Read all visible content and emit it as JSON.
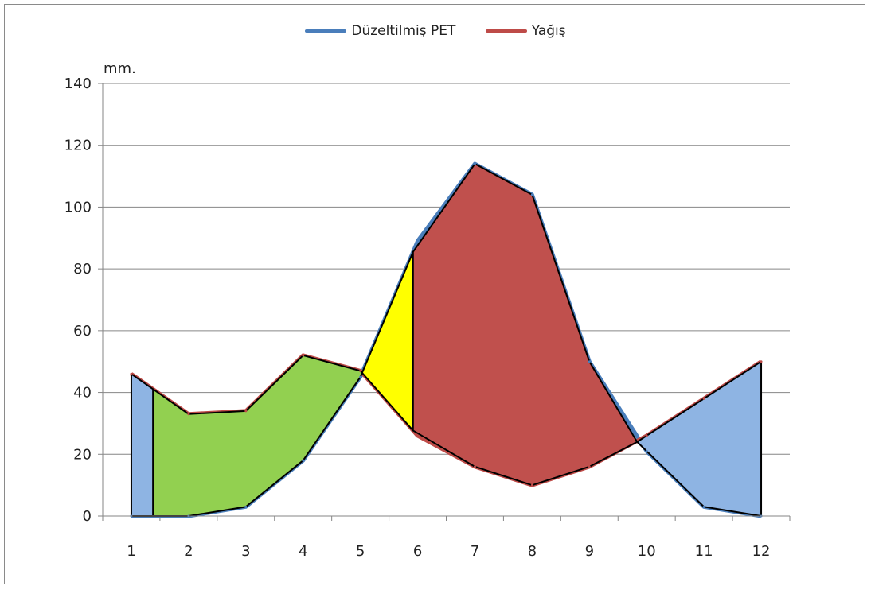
{
  "chart_data": {
    "type": "line",
    "unit_label": "mm.",
    "categories": [
      "1",
      "2",
      "3",
      "4",
      "5",
      "6",
      "7",
      "8",
      "9",
      "10",
      "11",
      "12"
    ],
    "ylim": [
      0,
      140
    ],
    "yticks": [
      "0",
      "20",
      "40",
      "60",
      "80",
      "100",
      "120",
      "140"
    ],
    "grid": true,
    "legend_position": "top",
    "series": [
      {
        "name": "Düzeltilmiş PET",
        "color": "#4a7ebb",
        "values": [
          0,
          0,
          3,
          18,
          45,
          89,
          114,
          104,
          50,
          21,
          3,
          0
        ]
      },
      {
        "name": "Yağış",
        "color": "#be4b48",
        "values": [
          46,
          33,
          34,
          52,
          47,
          26,
          16,
          10,
          16,
          26,
          38,
          50
        ]
      }
    ],
    "shaded_regions": [
      {
        "fill": "#8eb4e3"
      },
      {
        "fill": "#92d050"
      },
      {
        "fill": "#ffff00"
      },
      {
        "fill": "#c0504d"
      },
      {
        "fill": "#8eb4e3"
      }
    ]
  }
}
